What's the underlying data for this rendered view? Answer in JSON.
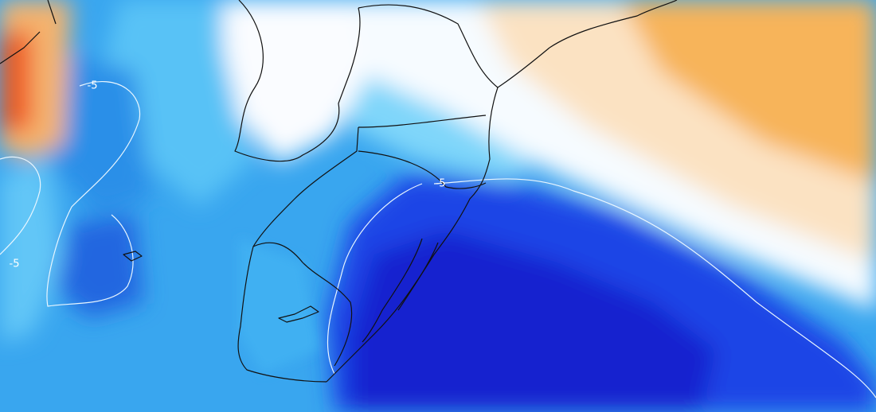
{
  "contour_labels": [
    "-5",
    "-5",
    "-5"
  ]
}
